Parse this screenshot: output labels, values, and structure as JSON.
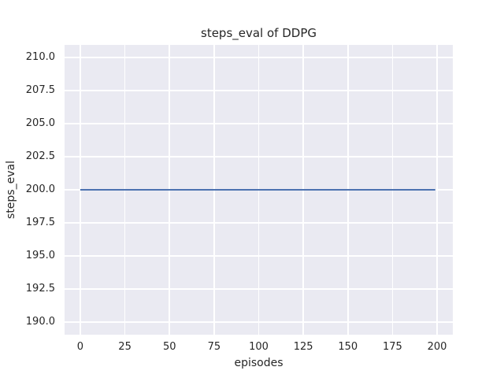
{
  "chart_data": {
    "type": "line",
    "title": "steps_eval of DDPG",
    "xlabel": "episodes",
    "ylabel": "steps_eval",
    "series": [
      {
        "name": "DDPG",
        "color": "#4c72b0",
        "x": [
          0,
          199
        ],
        "y": [
          200,
          200
        ]
      }
    ],
    "xlim": [
      -8.8,
      208.8
    ],
    "ylim": [
      189.05,
      210.95
    ],
    "xticks": [
      0,
      25,
      50,
      75,
      100,
      125,
      150,
      175,
      200
    ],
    "xtick_labels": [
      "0",
      "25",
      "50",
      "75",
      "100",
      "125",
      "150",
      "175",
      "200"
    ],
    "yticks": [
      190.0,
      192.5,
      195.0,
      197.5,
      200.0,
      202.5,
      205.0,
      207.5,
      210.0
    ],
    "ytick_labels": [
      "190.0",
      "192.5",
      "195.0",
      "197.5",
      "200.0",
      "202.5",
      "205.0",
      "207.5",
      "210.0"
    ],
    "grid": true,
    "legend": false,
    "style": {
      "plot_bg": "#eaeaf2",
      "grid_color": "#ffffff",
      "text_color": "#262626",
      "line_width": 2
    }
  }
}
